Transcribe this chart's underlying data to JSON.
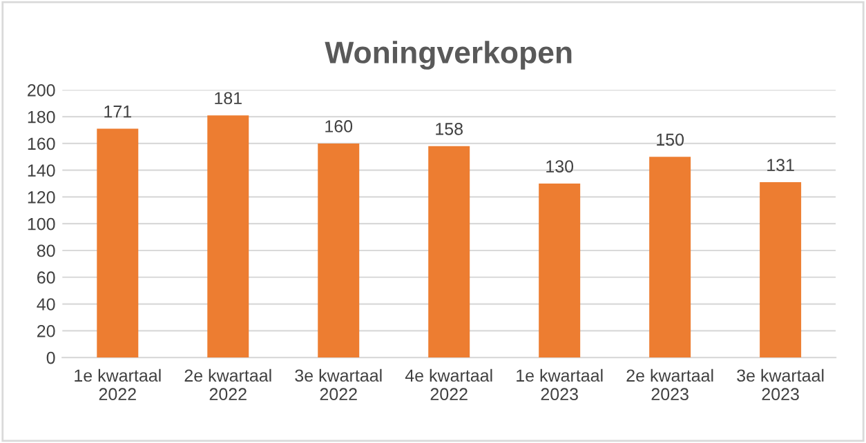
{
  "chart_data": {
    "type": "bar",
    "title": "Woningverkopen",
    "categories": [
      "1e kwartaal\n2022",
      "2e kwartaal\n2022",
      "3e kwartaal\n2022",
      "4e kwartaal\n2022",
      "1e kwartaal\n2023",
      "2e kwartaal\n2023",
      "3e kwartaal\n2023"
    ],
    "values": [
      171,
      181,
      160,
      158,
      130,
      150,
      131
    ],
    "color": "#ed7d31",
    "ylim": [
      0,
      200
    ],
    "yticks": [
      0,
      20,
      40,
      60,
      80,
      100,
      120,
      140,
      160,
      180,
      200
    ],
    "grid": "y",
    "data_labels": true
  }
}
